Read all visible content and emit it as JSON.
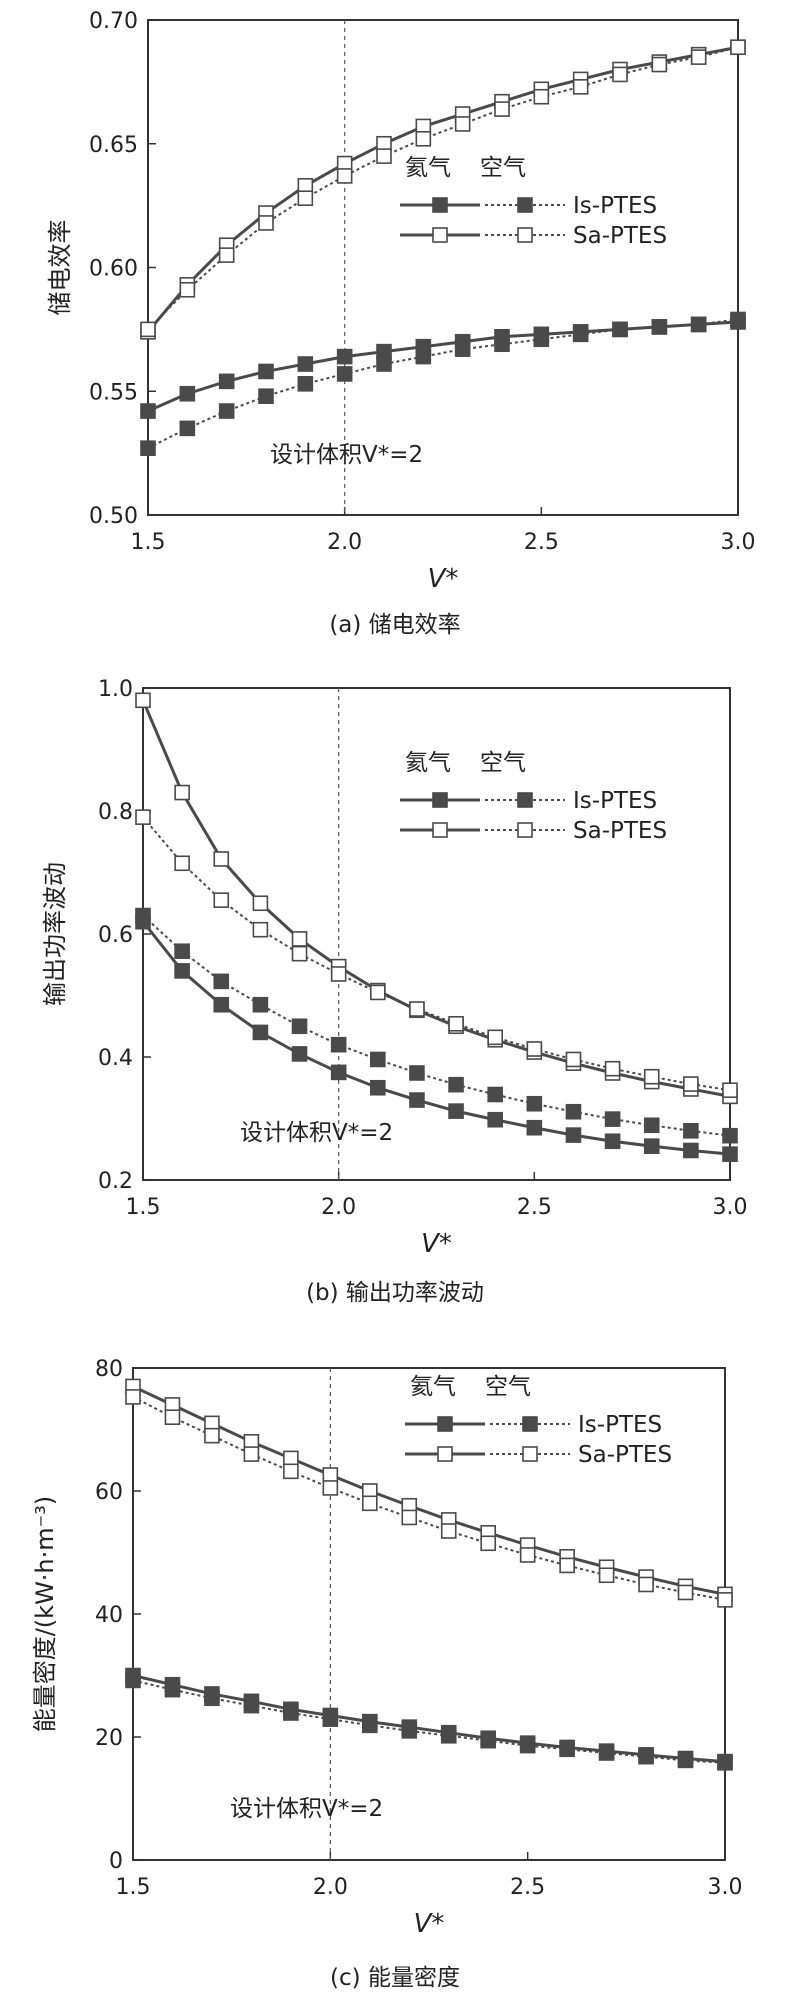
{
  "chart_data": [
    {
      "type": "line",
      "x": [
        1.5,
        1.6,
        1.7,
        1.8,
        1.9,
        2.0,
        2.1,
        2.2,
        2.3,
        2.4,
        2.5,
        2.6,
        2.7,
        2.8,
        2.9,
        3.0
      ],
      "xlim": [
        1.5,
        3.0
      ],
      "ylim": [
        0.5,
        0.7
      ],
      "xticks": [
        "1.5",
        "2.0",
        "2.5",
        "3.0"
      ],
      "yticks": [
        "0.50",
        "0.55",
        "0.60",
        "0.65",
        "0.70"
      ],
      "xlabel": "V*",
      "ylabel": "储电效率",
      "caption": "(a) 储电效率",
      "annotation": "设计体积V*=2",
      "design_line_x": 2.0,
      "legend": {
        "header_solid": "氦气",
        "header_dotted": "空气",
        "entries": [
          "Is-PTES",
          "Sa-PTES"
        ]
      },
      "series": [
        {
          "name": "Is-PTES 氦气",
          "marker": "filled",
          "dashed": false,
          "values": [
            0.542,
            0.549,
            0.554,
            0.558,
            0.561,
            0.564,
            0.566,
            0.568,
            0.57,
            0.572,
            0.573,
            0.574,
            0.575,
            0.576,
            0.577,
            0.578
          ]
        },
        {
          "name": "Is-PTES 空气",
          "marker": "filled",
          "dashed": true,
          "values": [
            0.527,
            0.535,
            0.542,
            0.548,
            0.553,
            0.557,
            0.561,
            0.564,
            0.567,
            0.569,
            0.571,
            0.573,
            0.575,
            0.576,
            0.577,
            0.579
          ]
        },
        {
          "name": "Sa-PTES 氦气",
          "marker": "open",
          "dashed": false,
          "values": [
            0.574,
            0.593,
            0.609,
            0.622,
            0.633,
            0.642,
            0.65,
            0.657,
            0.662,
            0.667,
            0.672,
            0.676,
            0.68,
            0.683,
            0.686,
            0.689
          ]
        },
        {
          "name": "Sa-PTES 空气",
          "marker": "open",
          "dashed": true,
          "values": [
            0.575,
            0.591,
            0.605,
            0.618,
            0.628,
            0.637,
            0.645,
            0.652,
            0.658,
            0.664,
            0.669,
            0.673,
            0.678,
            0.682,
            0.685,
            0.689
          ]
        }
      ]
    },
    {
      "type": "line",
      "x": [
        1.5,
        1.6,
        1.7,
        1.8,
        1.9,
        2.0,
        2.1,
        2.2,
        2.3,
        2.4,
        2.5,
        2.6,
        2.7,
        2.8,
        2.9,
        3.0
      ],
      "xlim": [
        1.5,
        3.0
      ],
      "ylim": [
        0.2,
        1.0
      ],
      "xticks": [
        "1.5",
        "2.0",
        "2.5",
        "3.0"
      ],
      "yticks": [
        "0.2",
        "0.4",
        "0.6",
        "0.8",
        "1.0"
      ],
      "xlabel": "V*",
      "ylabel": "输出功率波动",
      "caption": "(b) 输出功率波动",
      "annotation": "设计体积V*=2",
      "design_line_x": 2.0,
      "legend": {
        "header_solid": "氦气",
        "header_dotted": "空气",
        "entries": [
          "Is-PTES",
          "Sa-PTES"
        ]
      },
      "series": [
        {
          "name": "Is-PTES 氦气",
          "marker": "filled",
          "dashed": false,
          "values": [
            0.62,
            0.54,
            0.485,
            0.44,
            0.405,
            0.375,
            0.35,
            0.33,
            0.312,
            0.298,
            0.285,
            0.273,
            0.263,
            0.255,
            0.248,
            0.242
          ]
        },
        {
          "name": "Is-PTES 空气",
          "marker": "filled",
          "dashed": true,
          "values": [
            0.63,
            0.572,
            0.523,
            0.485,
            0.45,
            0.42,
            0.396,
            0.374,
            0.355,
            0.339,
            0.324,
            0.311,
            0.299,
            0.289,
            0.28,
            0.272
          ]
        },
        {
          "name": "Sa-PTES 氦气",
          "marker": "open",
          "dashed": false,
          "values": [
            0.98,
            0.83,
            0.722,
            0.65,
            0.592,
            0.547,
            0.508,
            0.476,
            0.45,
            0.428,
            0.408,
            0.39,
            0.374,
            0.36,
            0.348,
            0.336
          ]
        },
        {
          "name": "Sa-PTES 空气",
          "marker": "open",
          "dashed": true,
          "values": [
            0.79,
            0.715,
            0.655,
            0.607,
            0.568,
            0.535,
            0.505,
            0.478,
            0.454,
            0.432,
            0.413,
            0.396,
            0.381,
            0.368,
            0.356,
            0.346
          ]
        }
      ]
    },
    {
      "type": "line",
      "x": [
        1.5,
        1.6,
        1.7,
        1.8,
        1.9,
        2.0,
        2.1,
        2.2,
        2.3,
        2.4,
        2.5,
        2.6,
        2.7,
        2.8,
        2.9,
        3.0
      ],
      "xlim": [
        1.5,
        3.0
      ],
      "ylim": [
        0,
        80
      ],
      "xticks": [
        "1.5",
        "2.0",
        "2.5",
        "3.0"
      ],
      "yticks": [
        "0",
        "20",
        "40",
        "60",
        "80"
      ],
      "xlabel": "V*",
      "ylabel": "能量密度/(kW·h·m⁻³)",
      "caption": "(c) 能量密度",
      "annotation": "设计体积V*=2",
      "design_line_x": 2.0,
      "legend": {
        "header_solid": "氦气",
        "header_dotted": "空气",
        "entries": [
          "Is-PTES",
          "Sa-PTES"
        ]
      },
      "series": [
        {
          "name": "Is-PTES 氦气",
          "marker": "filled",
          "dashed": false,
          "values": [
            30.0,
            28.5,
            27.0,
            25.8,
            24.5,
            23.5,
            22.5,
            21.6,
            20.7,
            19.8,
            19.0,
            18.3,
            17.7,
            17.1,
            16.5,
            16.0
          ]
        },
        {
          "name": "Is-PTES 空气",
          "marker": "filled",
          "dashed": true,
          "values": [
            29.2,
            27.7,
            26.3,
            25.1,
            23.9,
            22.9,
            21.9,
            21.0,
            20.2,
            19.4,
            18.6,
            18.0,
            17.4,
            16.8,
            16.2,
            15.8
          ]
        },
        {
          "name": "Sa-PTES 氦气",
          "marker": "open",
          "dashed": false,
          "values": [
            77.0,
            74.0,
            71.0,
            68.0,
            65.3,
            62.6,
            60.0,
            57.6,
            55.3,
            53.2,
            51.2,
            49.3,
            47.6,
            46.0,
            44.5,
            43.2
          ]
        },
        {
          "name": "Sa-PTES 空气",
          "marker": "open",
          "dashed": true,
          "values": [
            75.3,
            72.0,
            69.0,
            66.0,
            63.2,
            60.5,
            58.0,
            55.7,
            53.5,
            51.5,
            49.6,
            47.9,
            46.3,
            44.8,
            43.5,
            42.3
          ]
        }
      ]
    }
  ]
}
